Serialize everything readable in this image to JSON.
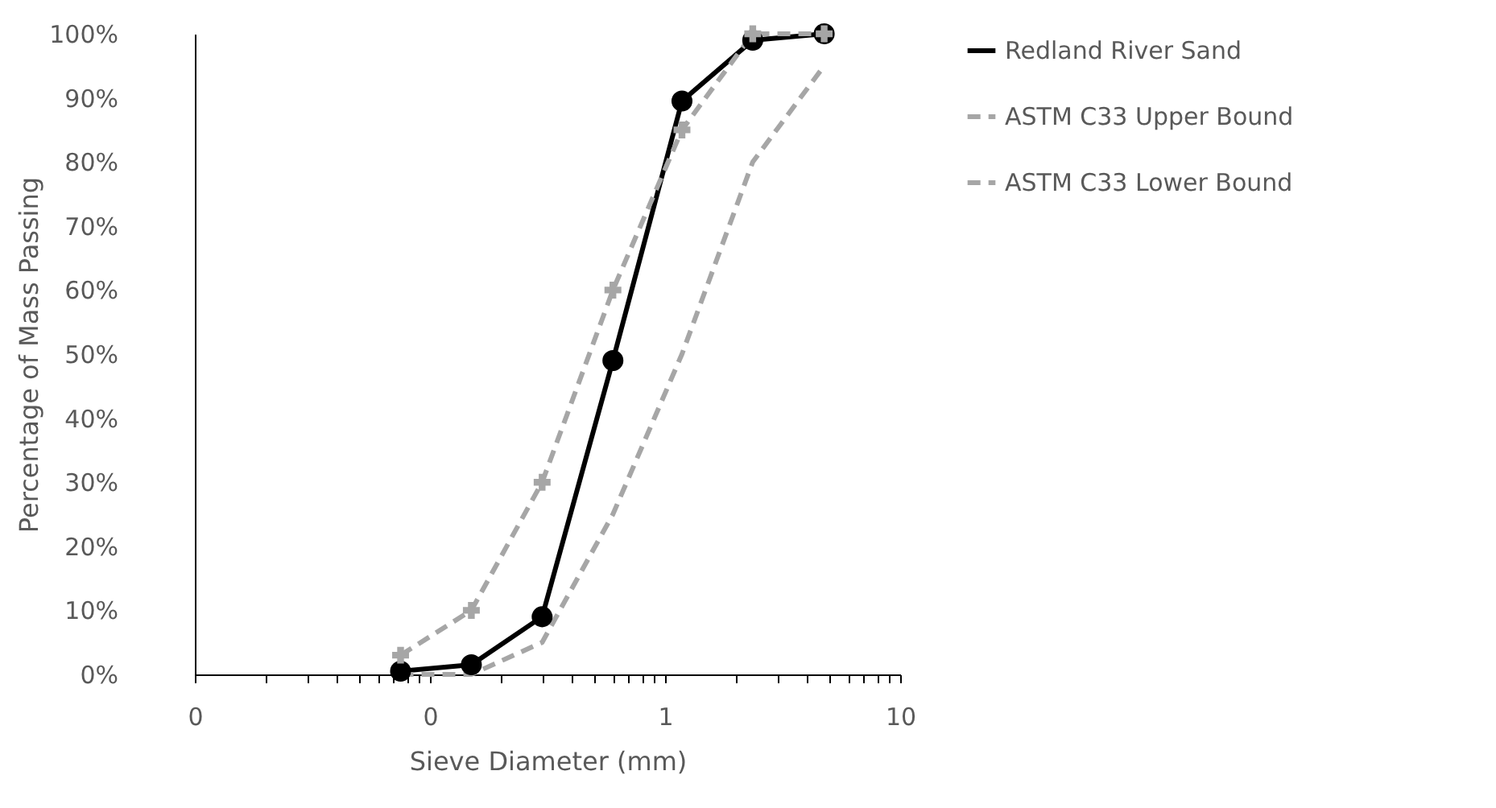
{
  "chart_data": {
    "type": "line",
    "xlabel": "Sieve Diameter (mm)",
    "ylabel": "Percentage of Mass Passing",
    "x": [
      0.075,
      0.15,
      0.3,
      0.6,
      1.18,
      2.36,
      4.75
    ],
    "series": [
      {
        "name": "Redland River Sand",
        "color": "#000000",
        "marker": "circle",
        "line_style": "solid",
        "values": [
          0.5,
          1.5,
          9,
          49,
          89.5,
          99,
          100
        ]
      },
      {
        "name": "ASTM C33 Upper Bound",
        "color": "#a6a6a6",
        "marker": "cross",
        "line_style": "dashed",
        "values": [
          3,
          10,
          30,
          60,
          85,
          100,
          100
        ]
      },
      {
        "name": "ASTM C33 Lower Bound",
        "color": "#a6a6a6",
        "marker": "none",
        "line_style": "dashed",
        "values": [
          0,
          0,
          5,
          25,
          50,
          80,
          95
        ]
      }
    ],
    "log": "x",
    "xlim": [
      0.01,
      10
    ],
    "ylim": [
      0,
      100
    ],
    "xticks": [
      {
        "value": 0.01,
        "label": "0"
      },
      {
        "value": 0.02,
        "label": null
      },
      {
        "value": 0.03,
        "label": null
      },
      {
        "value": 0.04,
        "label": null
      },
      {
        "value": 0.05,
        "label": null
      },
      {
        "value": 0.06,
        "label": null
      },
      {
        "value": 0.07,
        "label": null
      },
      {
        "value": 0.08,
        "label": null
      },
      {
        "value": 0.09,
        "label": null
      },
      {
        "value": 0.1,
        "label": "0"
      },
      {
        "value": 0.2,
        "label": null
      },
      {
        "value": 0.3,
        "label": null
      },
      {
        "value": 0.4,
        "label": null
      },
      {
        "value": 0.5,
        "label": null
      },
      {
        "value": 0.6,
        "label": null
      },
      {
        "value": 0.7,
        "label": null
      },
      {
        "value": 0.8,
        "label": null
      },
      {
        "value": 0.9,
        "label": null
      },
      1,
      {
        "value": 2,
        "label": null
      },
      {
        "value": 3,
        "label": null
      },
      {
        "value": 4,
        "label": null
      },
      {
        "value": 5,
        "label": null
      },
      {
        "value": 6,
        "label": null
      },
      {
        "value": 7,
        "label": null
      },
      {
        "value": 8,
        "label": null
      },
      {
        "value": 9,
        "label": null
      },
      10
    ],
    "yticks": [
      {
        "value": 0,
        "label": "0%"
      },
      {
        "value": 10,
        "label": "10%"
      },
      {
        "value": 20,
        "label": "20%"
      },
      {
        "value": 30,
        "label": "30%"
      },
      {
        "value": 40,
        "label": "40%"
      },
      {
        "value": 50,
        "label": "50%"
      },
      {
        "value": 60,
        "label": "60%"
      },
      {
        "value": 70,
        "label": "70%"
      },
      {
        "value": 80,
        "label": "80%"
      },
      {
        "value": 90,
        "label": "90%"
      },
      {
        "value": 100,
        "label": "100%"
      }
    ],
    "grid": false,
    "legend": "right"
  }
}
